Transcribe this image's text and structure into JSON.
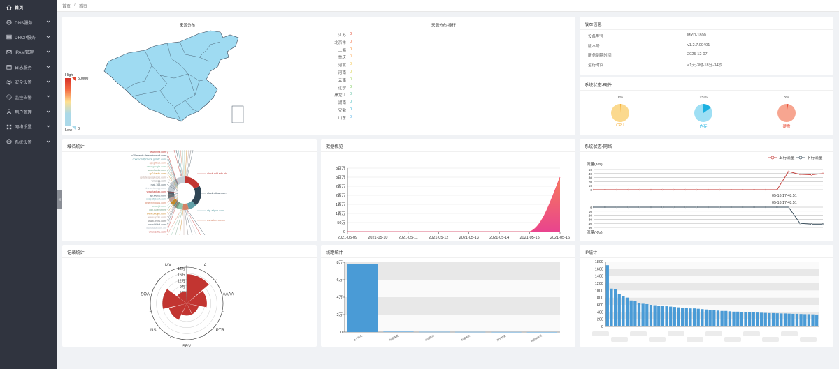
{
  "sidebar": {
    "items": [
      {
        "label": "首页",
        "icon": "home-icon",
        "active": true,
        "has_children": false
      },
      {
        "label": "DNS服务",
        "icon": "globe-icon",
        "active": false,
        "has_children": true
      },
      {
        "label": "DHCP服务",
        "icon": "server-icon",
        "active": false,
        "has_children": true
      },
      {
        "label": "IPAM管理",
        "icon": "mail-icon",
        "active": false,
        "has_children": true
      },
      {
        "label": "日志服务",
        "icon": "calendar-icon",
        "active": false,
        "has_children": true
      },
      {
        "label": "安全设置",
        "icon": "gear-icon",
        "active": false,
        "has_children": true
      },
      {
        "label": "监控告警",
        "icon": "gear-icon",
        "active": false,
        "has_children": true
      },
      {
        "label": "用户管理",
        "icon": "user-icon",
        "active": false,
        "has_children": true
      },
      {
        "label": "网络设置",
        "icon": "grid-icon",
        "active": false,
        "has_children": true
      },
      {
        "label": "系统设置",
        "icon": "globe-icon",
        "active": false,
        "has_children": true
      }
    ]
  },
  "breadcrumb": {
    "root": "首页",
    "separator": "/",
    "current": "首页"
  },
  "map_panel": {
    "title_left": "来源分布",
    "title_right": "来源分布-排行",
    "legend_high": "High",
    "legend_low": "Low",
    "legend_max": "50000",
    "legend_min": "0",
    "ranking": [
      {
        "name": "江苏",
        "value": "0"
      },
      {
        "name": "北京市",
        "value": "0"
      },
      {
        "name": "上海",
        "value": "0"
      },
      {
        "name": "重庆",
        "value": "0"
      },
      {
        "name": "河北",
        "value": "0"
      },
      {
        "name": "河南",
        "value": "0"
      },
      {
        "name": "云南",
        "value": "0"
      },
      {
        "name": "辽宁",
        "value": "0"
      },
      {
        "name": "黑龙江",
        "value": "0"
      },
      {
        "name": "湖南",
        "value": "0"
      },
      {
        "name": "安徽",
        "value": "0"
      },
      {
        "name": "山东",
        "value": "0"
      }
    ],
    "ranking_colors": [
      "#e34a33",
      "#f46d43",
      "#f8913a",
      "#fdae61",
      "#f3c64d",
      "#d9d24a",
      "#a6d96a",
      "#7ccb5c",
      "#66c2a5",
      "#4bbfbf",
      "#3fb7d9",
      "#5ab4e8"
    ]
  },
  "version_panel": {
    "title": "版本信息",
    "rows": [
      {
        "key": "设备型号",
        "value": "MYD-1800"
      },
      {
        "key": "版本号",
        "value": "v1.2.7.00401"
      },
      {
        "key": "服务到期时间",
        "value": "2025-12-07"
      },
      {
        "key": "运行时间",
        "value": "<1天-3时-18分-34秒"
      }
    ]
  },
  "hardware_panel": {
    "title": "系统状态-硬件",
    "gauges": [
      {
        "label": "CPU",
        "percent_text": "1%",
        "value": 0.01,
        "color": "#f5a623",
        "fill": "#fbd98e"
      },
      {
        "label": "内存",
        "percent_text": "15%",
        "value": 0.15,
        "color": "#1ab0e0",
        "fill": "#9edff4"
      },
      {
        "label": "硬盘",
        "percent_text": "3%",
        "value": 0.03,
        "color": "#e8503a",
        "fill": "#f7a590"
      }
    ]
  },
  "domain_panel": {
    "title": "域名统计",
    "labels_left": [
      "www.bing.com",
      "v10.events.data.microsoft.com",
      "connectivitycheck.gstatic.com",
      "api.github.com",
      "www.google.com",
      "www.baidu.com",
      "sp0.baidu.com",
      "update.googleapis.com",
      "www.qq.com",
      "mail.163.com",
      "dns.weixin.qq.com",
      "www.taobao.com",
      "api.weibo.com",
      "ocsp.digicert.com",
      "time.windows.com",
      "www.jd.com",
      "cdn.jsdelivr.net",
      "www.douyin.com",
      "www.apple.com",
      "www.zhihu.com",
      "www.bilibili.com",
      "www.sina.com.cn",
      "www.sohu.com"
    ],
    "labels_right": [
      "clock.cdd.edu.hk",
      "clock.ntthat.com",
      "ntp.aliyun.com",
      "www.kwiro.com"
    ],
    "donut_colors": [
      "#c23531",
      "#2f4554",
      "#61a0a8",
      "#d48265",
      "#91c7ae",
      "#749f83",
      "#ca8622",
      "#bda29a",
      "#6e7074",
      "#546570",
      "#c4ccd3"
    ]
  },
  "overview_panel": {
    "title": "数据概览",
    "chart_data": {
      "type": "area",
      "x": [
        "2021-05-09",
        "2021-05-10",
        "2021-05-11",
        "2021-05-12",
        "2021-05-13",
        "2021-05-14",
        "2021-05-15",
        "2021-05-16"
      ],
      "values": [
        0,
        0,
        0,
        0,
        0,
        0,
        0,
        3000000
      ],
      "ylim": [
        0,
        3500000
      ],
      "y_ticks": [
        "0",
        "50万",
        "1百万",
        "1百万",
        "2百万",
        "2百万",
        "3百万",
        "3百万"
      ],
      "color": "#f5577a"
    }
  },
  "network_panel": {
    "title": "系统状态-网络",
    "legend_up": "上行流量",
    "legend_down": "下行流量",
    "ylabel": "流量(K/s)",
    "ylabel_bottom": "流量(K/s)",
    "tooltip_time": "05-16 17:48:51",
    "chart_data": {
      "type": "line",
      "series": [
        {
          "name": "上行流量",
          "values": [
            0,
            0,
            0,
            0,
            0,
            0,
            0,
            0,
            0,
            0,
            0,
            0,
            0,
            0,
            0,
            0,
            0,
            45,
            38,
            37,
            40
          ],
          "color": "#c23531"
        },
        {
          "name": "下行流量",
          "values": [
            0,
            0,
            0,
            0,
            0,
            0,
            0,
            0,
            0,
            0,
            0,
            0,
            0,
            0,
            0,
            0,
            0,
            0,
            -40,
            -42,
            -42
          ],
          "color": "#2f4554"
        }
      ],
      "y_ticks_top": [
        "0",
        "10",
        "20",
        "30",
        "40",
        "50"
      ],
      "y_ticks_bottom": [
        "0",
        "10",
        "20",
        "30",
        "40",
        "50"
      ]
    }
  },
  "record_panel": {
    "title": "记录统计",
    "chart_data": {
      "type": "bar",
      "categories": [
        "A",
        "AAAA",
        "PTR",
        "SRV",
        "NS",
        "SOA",
        "MX"
      ],
      "values": [
        145000,
        100000,
        60000,
        60000,
        90000,
        120000,
        60000
      ],
      "r_ticks": [
        "3万",
        "6万",
        "9万",
        "12万",
        "15万",
        "18万"
      ],
      "max": 180000,
      "color": "#c23531"
    }
  },
  "line_panel": {
    "title": "线路统计",
    "chart_data": {
      "type": "bar",
      "categories": [
        "全子域名",
        "中国联通",
        "中国移动",
        "中国电信",
        "海外线路",
        "中国教育网"
      ],
      "values": [
        78000,
        500,
        300,
        200,
        100,
        50
      ],
      "ylim": [
        0,
        80000
      ],
      "y_ticks": [
        "0",
        "2万",
        "4万",
        "6万",
        "8万"
      ],
      "color": "#4a9bd6"
    }
  },
  "ip_panel": {
    "title": "IP统计",
    "chart_data": {
      "type": "bar",
      "values": [
        1700,
        1050,
        1030,
        900,
        850,
        800,
        720,
        700,
        650,
        630,
        620,
        600,
        590,
        580,
        570,
        560,
        550,
        540,
        530,
        520,
        510,
        500,
        500,
        490,
        480,
        470,
        460,
        450,
        440,
        430,
        430,
        420,
        410,
        410,
        400,
        400,
        395,
        390,
        385,
        380,
        375,
        370,
        370,
        365,
        360,
        360,
        355,
        350,
        350,
        345,
        340,
        340,
        335,
        330
      ],
      "ylim": [
        0,
        1800
      ],
      "y_ticks": [
        "0",
        "200",
        "400",
        "600",
        "800",
        "1000",
        "1200",
        "1400",
        "1600",
        "1800"
      ],
      "color": "#4a9bd6"
    }
  }
}
